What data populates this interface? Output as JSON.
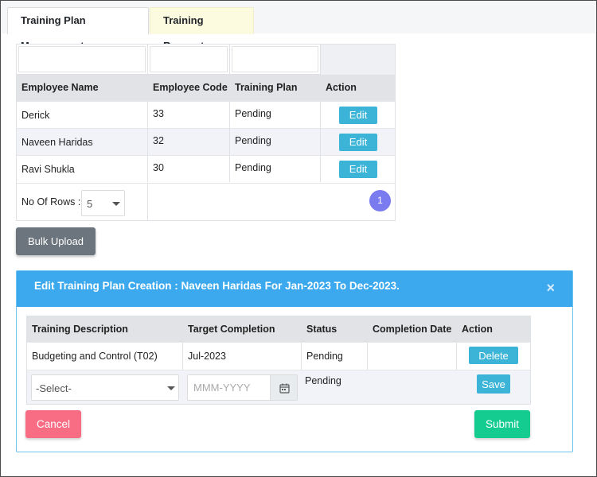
{
  "tabs": [
    {
      "label": "Training Plan Management",
      "active": true
    },
    {
      "label": "Training Requests",
      "active": false
    }
  ],
  "employee_table": {
    "columns": [
      "Employee Name",
      "Employee Code",
      "Training Plan",
      "Action"
    ],
    "rows": [
      {
        "name": "Derick",
        "code": "33",
        "plan": "Pending",
        "action": "Edit"
      },
      {
        "name": "Naveen Haridas",
        "code": "32",
        "plan": "Pending",
        "action": "Edit"
      },
      {
        "name": "Ravi Shukla",
        "code": "30",
        "plan": "Pending",
        "action": "Edit"
      }
    ],
    "rows_label": "No Of Rows :",
    "rows_value": "5",
    "current_page": "1"
  },
  "bulk_upload_label": "Bulk Upload",
  "modal": {
    "title": "Edit Training Plan Creation :  Naveen Haridas For Jan-2023 To Dec-2023.",
    "close_label": "×",
    "columns": [
      "Training Description",
      "Target Completion",
      "Status",
      "Completion Date",
      "Action"
    ],
    "rows": [
      {
        "description": "Budgeting and Control (T02)",
        "target": "Jul-2023",
        "status": "Pending",
        "completion": "",
        "action": "Delete"
      }
    ],
    "new_row": {
      "select_value": "-Select-",
      "date_placeholder": "MMM-YYYY",
      "status": "Pending",
      "action": "Save"
    },
    "cancel_label": "Cancel",
    "submit_label": "Submit"
  },
  "icons": {
    "caret": "chevron-down-icon",
    "calendar": "calendar-icon",
    "close": "close-icon"
  },
  "colors": {
    "primary_blue": "#3ca9ef",
    "edit_button": "#3bb4d8",
    "cancel": "#f86c84",
    "submit": "#14cc8f",
    "secondary": "#6c757d",
    "page_badge": "#7b7bf0"
  }
}
